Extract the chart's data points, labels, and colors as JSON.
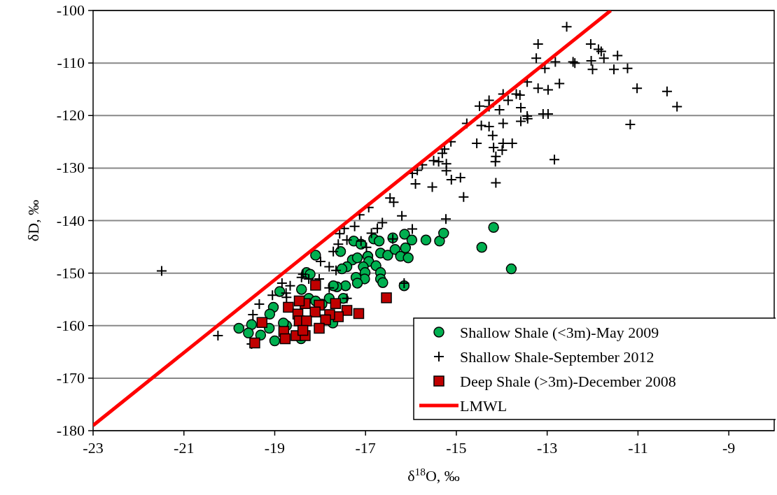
{
  "chart_data": {
    "type": "scatter",
    "xlabel": "δ$^{18}$O, ‰",
    "ylabel": "δD, ‰",
    "xlim": [
      -23,
      -8
    ],
    "xticks": [
      -23,
      -21,
      -19,
      -17,
      -15,
      -13,
      -11,
      -9
    ],
    "ylim": [
      -180,
      -100
    ],
    "yticks": [
      -180,
      -170,
      -160,
      -150,
      -140,
      -130,
      -120,
      -110,
      -100
    ],
    "grid": "y",
    "legend": "bottom right",
    "series": [
      {
        "name": "Shallow Shale (<3m)-May 2009",
        "color": "#00b050",
        "marker": "circle",
        "x": [
          -18.1,
          -17.55,
          -17.26,
          -17.1,
          -16.82,
          -16.7,
          -16.4,
          -16.14,
          -15.98,
          -15.67,
          -15.37,
          -15.28,
          -17.29,
          -17.18,
          -17.41,
          -17.52,
          -16.95,
          -16.93,
          -16.77,
          -16.67,
          -16.51,
          -16.35,
          -16.23,
          -16.06,
          -16.12,
          -17.05,
          -17.01,
          -17.02,
          -16.67,
          -16.67,
          -16.62,
          -17.21,
          -17.18,
          -17.44,
          -17.63,
          -17.71,
          -18.3,
          -18.22,
          -18.41,
          -18.89,
          -19.03,
          -19.11,
          -19.51,
          -19.79,
          -19.58,
          -19.31,
          -19.12,
          -19.0,
          -18.74,
          -16.15,
          -17.8,
          -17.96,
          -18.25,
          -18.1,
          -17.72,
          -18.81,
          -18.42,
          -17.49,
          -14.18,
          -14.44,
          -13.79
        ],
        "values": [
          -146.6,
          -145.9,
          -143.9,
          -144.5,
          -143.5,
          -143.9,
          -143.3,
          -142.6,
          -143.7,
          -143.7,
          -143.9,
          -142.4,
          -147.5,
          -147.1,
          -148.8,
          -149.2,
          -146.8,
          -147.8,
          -148.6,
          -146.2,
          -146.6,
          -145.5,
          -146.8,
          -147.1,
          -145.2,
          -148.8,
          -149.9,
          -151.1,
          -149.9,
          -151.1,
          -151.8,
          -150.8,
          -151.9,
          -152.4,
          -152.6,
          -152.4,
          -149.9,
          -150.2,
          -153.1,
          -153.5,
          -156.5,
          -157.8,
          -159.8,
          -160.5,
          -161.4,
          -161.8,
          -160.5,
          -162.9,
          -160.0,
          -152.4,
          -154.8,
          -155.9,
          -154.8,
          -155.3,
          -159.5,
          -159.5,
          -162.5,
          -154.8,
          -141.3,
          -145.1,
          -149.2
        ]
      },
      {
        "name": "Shallow Shale-September 2012",
        "color": "#000000",
        "marker": "cross",
        "x": [
          -12.57,
          -13.2,
          -12.04,
          -11.87,
          -11.81,
          -11.75,
          -11.45,
          -13.24,
          -12.82,
          -12.43,
          -12.39,
          -12.03,
          -12.0,
          -11.53,
          -11.23,
          -13.05,
          -11.02,
          -13.44,
          -13.2,
          -12.98,
          -12.73,
          -13.97,
          -13.86,
          -13.68,
          -13.6,
          -14.28,
          -14.49,
          -14.28,
          -14.05,
          -13.58,
          -13.44,
          -13.43,
          -13.58,
          -13.09,
          -12.98,
          -14.77,
          -14.45,
          -14.28,
          -13.97,
          -14.2,
          -14.55,
          -14.18,
          -13.97,
          -13.99,
          -13.77,
          -14.13,
          -14.14,
          -12.84,
          -11.17,
          -15.12,
          -15.26,
          -15.31,
          -15.75,
          -15.5,
          -15.39,
          -15.22,
          -15.22,
          -15.97,
          -15.86,
          -15.9,
          -15.53,
          -15.11,
          -14.91,
          -14.84,
          -14.13,
          -16.46,
          -16.38,
          -10.36,
          -10.14,
          -21.49,
          -20.25,
          -16.93,
          -17.13,
          -17.24,
          -16.2,
          -15.23,
          -16.63,
          -16.74,
          -16.87,
          -17.47,
          -17.57,
          -15.97,
          -17.41,
          -17.1,
          -16.4,
          -17.6,
          -16.98,
          -17.71,
          -17.99,
          -17.8,
          -17.65,
          -18.38,
          -18.41,
          -18.25,
          -18.02,
          -18.84,
          -18.66,
          -18.75,
          -18.74,
          -19.05,
          -17.8,
          -16.15,
          -17.41,
          -19.34,
          -19.48,
          -19.51
        ],
        "values": [
          -103.1,
          -106.4,
          -106.4,
          -107.4,
          -107.8,
          -109.1,
          -108.6,
          -109.1,
          -109.8,
          -109.8,
          -110.0,
          -109.6,
          -111.2,
          -111.2,
          -111.0,
          -111.0,
          -114.8,
          -113.6,
          -114.8,
          -115.1,
          -113.9,
          -115.9,
          -117.1,
          -115.9,
          -116.1,
          -117.1,
          -118.2,
          -118.3,
          -118.9,
          -118.5,
          -120.1,
          -120.6,
          -121.1,
          -119.7,
          -119.7,
          -121.5,
          -121.9,
          -122.1,
          -121.5,
          -123.8,
          -125.3,
          -126.1,
          -125.3,
          -126.6,
          -125.3,
          -127.8,
          -128.8,
          -128.4,
          -121.7,
          -125.0,
          -126.4,
          -127.2,
          -129.4,
          -128.6,
          -128.8,
          -129.2,
          -130.5,
          -131.0,
          -130.4,
          -133.0,
          -133.6,
          -132.2,
          -131.8,
          -135.5,
          -132.8,
          -135.7,
          -136.5,
          -115.4,
          -118.3,
          -149.6,
          -161.9,
          -137.5,
          -138.9,
          -141.1,
          -139.1,
          -139.7,
          -140.4,
          -141.5,
          -142.4,
          -141.5,
          -142.5,
          -141.6,
          -143.7,
          -143.9,
          -143.5,
          -144.5,
          -145.1,
          -145.9,
          -147.8,
          -148.8,
          -149.5,
          -150.2,
          -150.8,
          -151.1,
          -151.1,
          -151.9,
          -152.4,
          -153.8,
          -154.6,
          -154.2,
          -152.8,
          -151.9,
          -154.8,
          -155.9,
          -157.9,
          -163.5
        ]
      },
      {
        "name": "Deep Shale (>3m)-December 2008",
        "color": "#c00000",
        "marker": "square",
        "x": [
          -18.1,
          -16.54,
          -17.15,
          -17.41,
          -17.6,
          -17.66,
          -17.79,
          -18.02,
          -18.11,
          -18.33,
          -18.46,
          -18.7,
          -18.49,
          -18.46,
          -18.3,
          -17.88,
          -19.28,
          -18.8,
          -18.53,
          -18.33,
          -18.77,
          -19.44,
          -18.38,
          -18.02
        ],
        "values": [
          -152.3,
          -154.7,
          -157.7,
          -157.1,
          -158.3,
          -155.8,
          -157.9,
          -156.1,
          -157.4,
          -155.8,
          -155.3,
          -156.5,
          -157.8,
          -159.1,
          -159.1,
          -158.9,
          -159.4,
          -161.1,
          -161.9,
          -161.9,
          -162.5,
          -163.3,
          -160.9,
          -160.5
        ]
      },
      {
        "name": "LMWL",
        "type": "line",
        "color": "#ff0000",
        "marker": "none",
        "x": [
          -23,
          -11.6
        ],
        "values": [
          -179,
          -100
        ]
      }
    ]
  }
}
